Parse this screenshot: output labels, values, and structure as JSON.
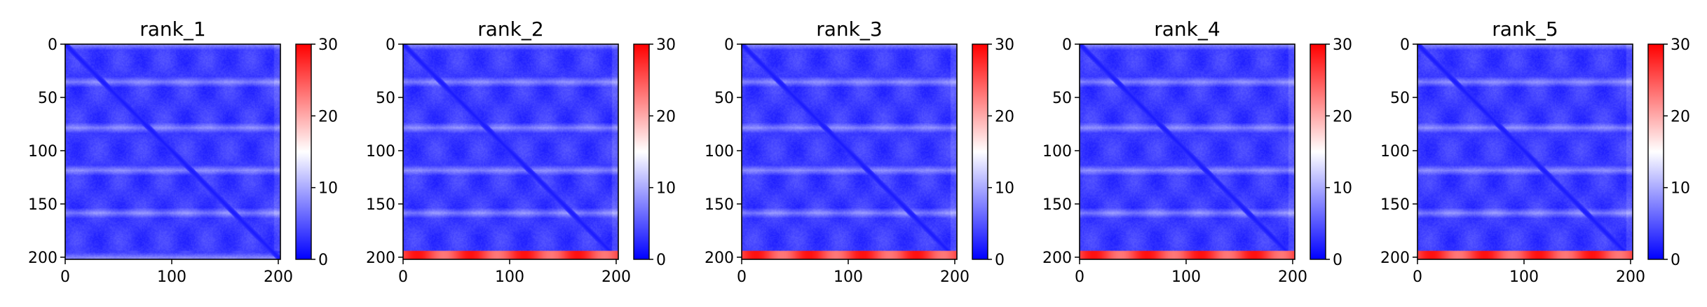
{
  "chart_data": [
    {
      "type": "heatmap",
      "title": "rank_1",
      "xlabel": "",
      "ylabel": "",
      "xlim": [
        0,
        202
      ],
      "ylim": [
        202,
        0
      ],
      "x_ticks": [
        "0",
        "100",
        "200"
      ],
      "y_ticks": [
        "0",
        "50",
        "100",
        "150",
        "200"
      ],
      "colorbar": {
        "range": [
          0,
          30
        ],
        "ticks": [
          "0",
          "10",
          "20",
          "30"
        ],
        "colormap": "bwr"
      },
      "matrix_size": 202,
      "background_value": 3.5,
      "diagonal_value": 1.5,
      "bright_rows": [
        0,
        35,
        78,
        118,
        158,
        200
      ],
      "bottom_band_value": 3.5
    },
    {
      "type": "heatmap",
      "title": "rank_2",
      "xlabel": "",
      "ylabel": "",
      "xlim": [
        0,
        202
      ],
      "ylim": [
        202,
        0
      ],
      "x_ticks": [
        "0",
        "100",
        "200"
      ],
      "y_ticks": [
        "0",
        "50",
        "100",
        "150",
        "200"
      ],
      "colorbar": {
        "range": [
          0,
          30
        ],
        "ticks": [
          "0",
          "10",
          "20",
          "30"
        ],
        "colormap": "bwr"
      },
      "matrix_size": 202,
      "background_value": 3.5,
      "diagonal_value": 1.5,
      "bright_rows": [
        0,
        35,
        78,
        118,
        158
      ],
      "bottom_band_value": 28
    },
    {
      "type": "heatmap",
      "title": "rank_3",
      "xlabel": "",
      "ylabel": "",
      "xlim": [
        0,
        202
      ],
      "ylim": [
        202,
        0
      ],
      "x_ticks": [
        "0",
        "100",
        "200"
      ],
      "y_ticks": [
        "0",
        "50",
        "100",
        "150",
        "200"
      ],
      "colorbar": {
        "range": [
          0,
          30
        ],
        "ticks": [
          "0",
          "10",
          "20",
          "30"
        ],
        "colormap": "bwr"
      },
      "matrix_size": 202,
      "background_value": 3.5,
      "diagonal_value": 1.5,
      "bright_rows": [
        0,
        35,
        78,
        118,
        158
      ],
      "bottom_band_value": 28
    },
    {
      "type": "heatmap",
      "title": "rank_4",
      "xlabel": "",
      "ylabel": "",
      "xlim": [
        0,
        202
      ],
      "ylim": [
        202,
        0
      ],
      "x_ticks": [
        "0",
        "100",
        "200"
      ],
      "y_ticks": [
        "0",
        "50",
        "100",
        "150",
        "200"
      ],
      "colorbar": {
        "range": [
          0,
          30
        ],
        "ticks": [
          "0",
          "10",
          "20",
          "30"
        ],
        "colormap": "bwr"
      },
      "matrix_size": 202,
      "background_value": 3.5,
      "diagonal_value": 1.5,
      "bright_rows": [
        0,
        35,
        78,
        118,
        158
      ],
      "bottom_band_value": 28
    },
    {
      "type": "heatmap",
      "title": "rank_5",
      "xlabel": "",
      "ylabel": "",
      "xlim": [
        0,
        202
      ],
      "ylim": [
        202,
        0
      ],
      "x_ticks": [
        "0",
        "100",
        "200"
      ],
      "y_ticks": [
        "0",
        "50",
        "100",
        "150",
        "200"
      ],
      "colorbar": {
        "range": [
          0,
          30
        ],
        "ticks": [
          "0",
          "10",
          "20",
          "30"
        ],
        "colormap": "bwr"
      },
      "matrix_size": 202,
      "background_value": 3.5,
      "diagonal_value": 1.5,
      "bright_rows": [
        0,
        35,
        78,
        118,
        158
      ],
      "bottom_band_value": 28
    }
  ]
}
